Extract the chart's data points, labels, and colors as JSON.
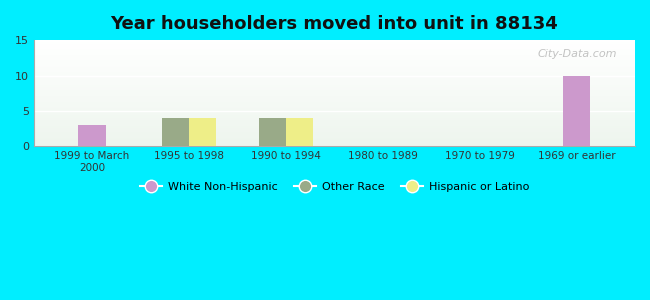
{
  "title": "Year householders moved into unit in 88134",
  "categories": [
    "1999 to March\n2000",
    "1995 to 1998",
    "1990 to 1994",
    "1980 to 1989",
    "1970 to 1979",
    "1969 or earlier"
  ],
  "series": {
    "White Non-Hispanic": [
      3,
      0,
      0,
      0,
      0,
      10
    ],
    "Other Race": [
      0,
      4,
      4,
      0,
      0,
      0
    ],
    "Hispanic or Latino": [
      0,
      4,
      4,
      0,
      0,
      0
    ]
  },
  "colors": {
    "White Non-Hispanic": "#cc99cc",
    "Other Race": "#99aa88",
    "Hispanic or Latino": "#eeee88"
  },
  "ylim": [
    0,
    15
  ],
  "yticks": [
    0,
    5,
    10,
    15
  ],
  "bar_width": 0.28,
  "background_color": "#00eeff",
  "watermark": "City-Data.com"
}
